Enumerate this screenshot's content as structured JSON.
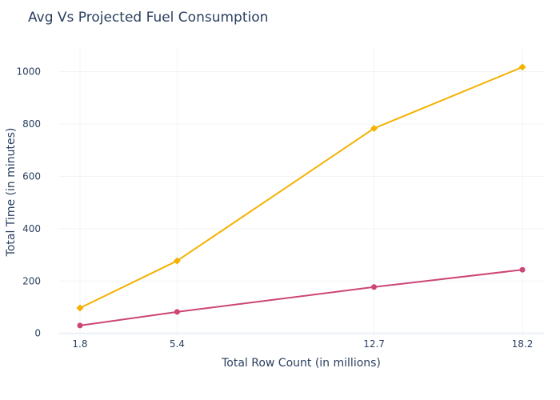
{
  "chart_data": {
    "type": "line",
    "title": "Avg Vs Projected Fuel Consumption",
    "xlabel": "Total Row Count (in millions)",
    "ylabel": "Total Time (in minutes)",
    "x": [
      1.8,
      5.4,
      12.7,
      18.2
    ],
    "x_tick_labels": [
      "1.8",
      "5.4",
      "12.7",
      "18.2"
    ],
    "xlim": [
      1.0,
      19.0
    ],
    "ylim": [
      -10,
      1090
    ],
    "y_ticks": [
      0,
      200,
      400,
      600,
      800,
      1000
    ],
    "grid": true,
    "legend": "none",
    "series": [
      {
        "values": [
          97,
          277,
          783,
          1017
        ],
        "color": "#f5b100",
        "marker": "diamond"
      },
      {
        "values": [
          30,
          82,
          177,
          243
        ],
        "color": "#cc4576",
        "marker": "circle"
      }
    ]
  }
}
